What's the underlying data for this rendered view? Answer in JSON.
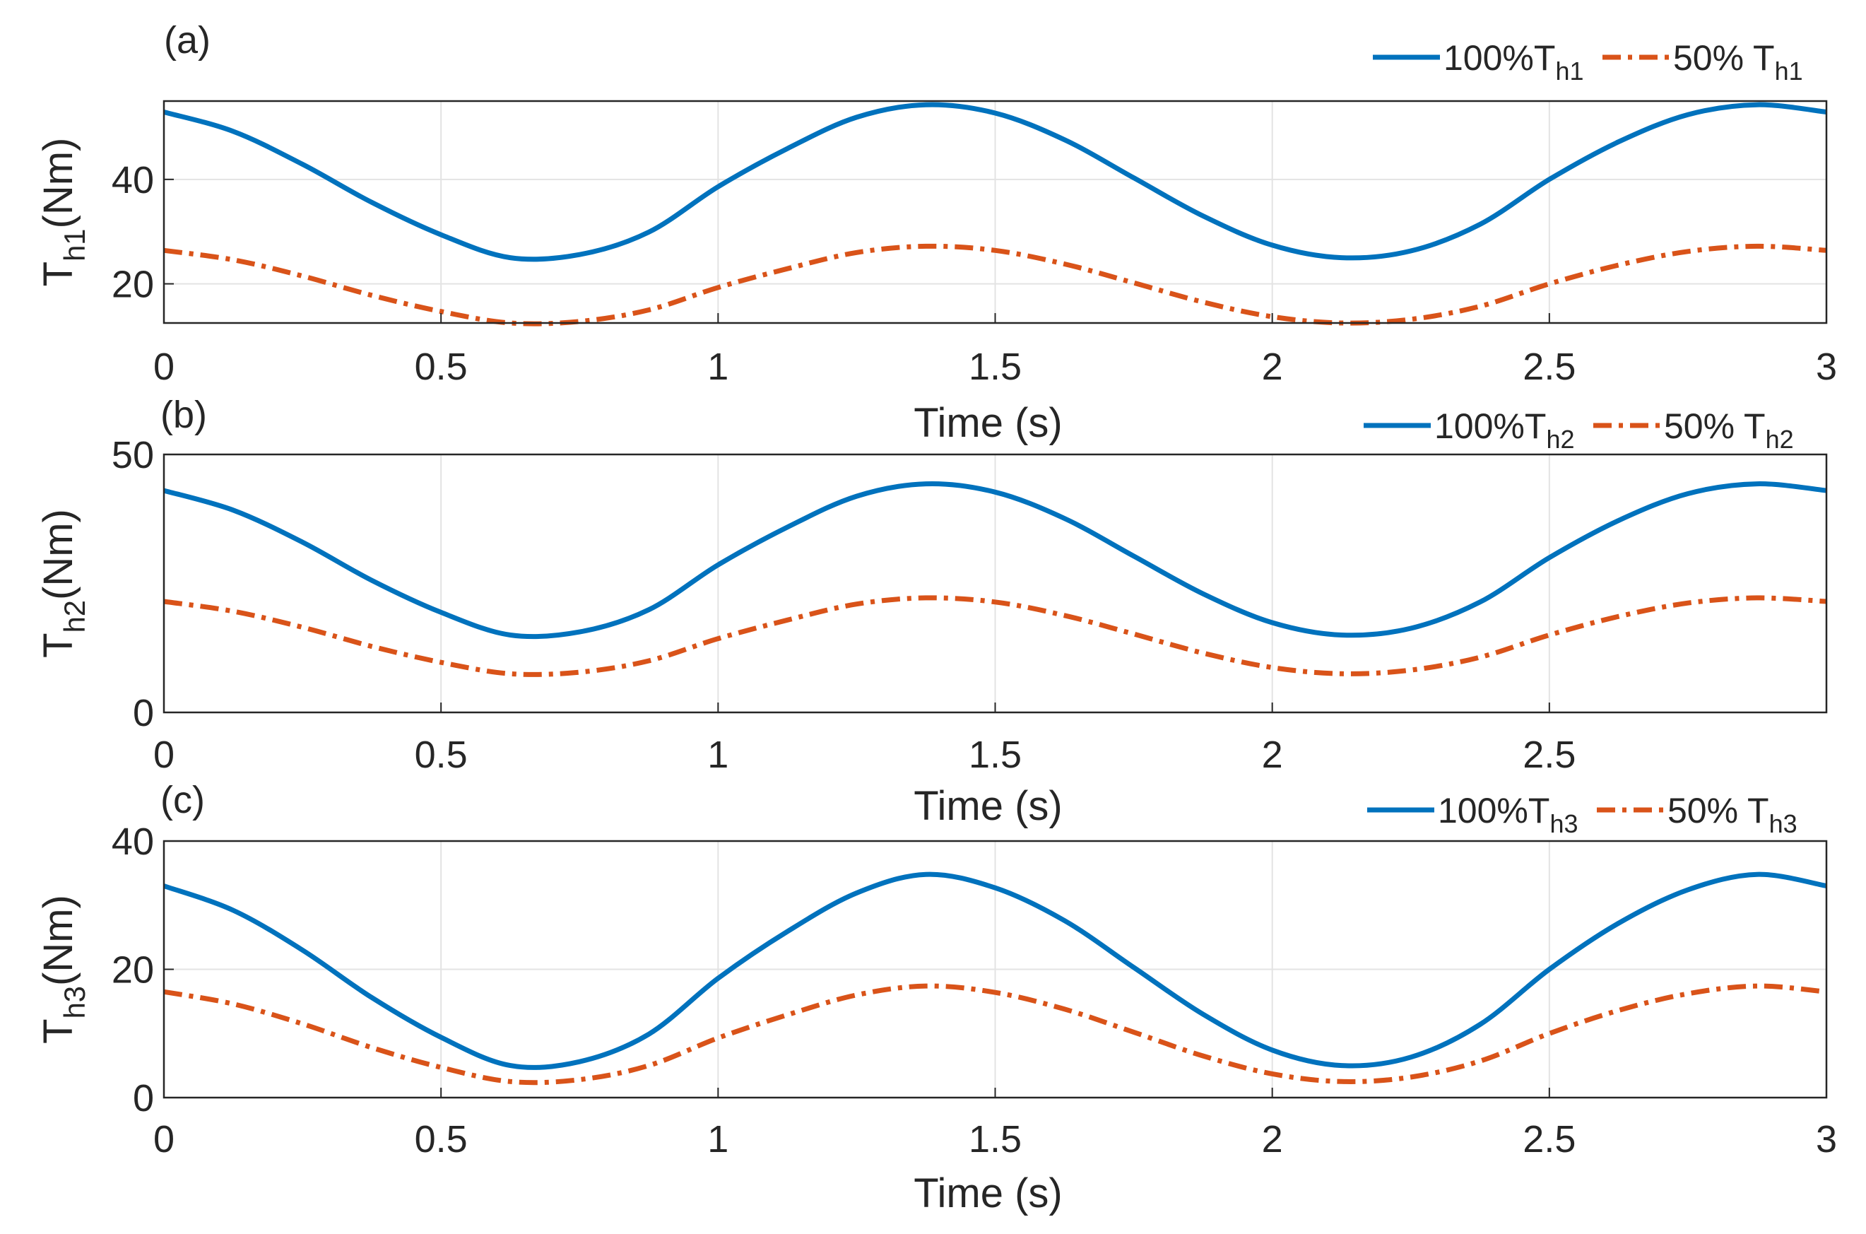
{
  "chart_data": [
    {
      "type": "line",
      "panel_label": "(a)",
      "xlabel": "Time (s)",
      "ylabel": {
        "main": "T",
        "sub": "h1",
        "unit": "(Nm)"
      },
      "xlim": [
        0,
        3
      ],
      "ylim": [
        12.5,
        55
      ],
      "xticks": [
        0,
        0.5,
        1,
        1.5,
        2,
        2.5,
        3
      ],
      "xtick_labels": [
        "0",
        "0.5",
        "1",
        "1.5",
        "2",
        "2.5",
        "3"
      ],
      "yticks": [
        20,
        40
      ],
      "ytick_labels": [
        "20",
        "40"
      ],
      "grid": true,
      "legend_position": "top-right",
      "x": [
        0,
        0.125,
        0.25,
        0.375,
        0.5,
        0.625,
        0.75,
        0.875,
        1,
        1.125,
        1.25,
        1.375,
        1.5,
        1.625,
        1.75,
        1.875,
        2,
        2.125,
        2.25,
        2.375,
        2.5,
        2.625,
        2.75,
        2.875,
        3
      ],
      "series": [
        {
          "name": "100%T",
          "name_sub": "h1",
          "color": "#0072BD",
          "dash": "solid",
          "values": [
            52.9,
            49.2,
            42.9,
            35.6,
            29.4,
            25.0,
            25.6,
            29.9,
            38.6,
            45.9,
            51.9,
            54.3,
            52.7,
            47.6,
            40.3,
            33.0,
            27.4,
            25.0,
            26.3,
            31.4,
            40.0,
            47.2,
            52.4,
            54.3,
            52.9
          ]
        },
        {
          "name": "50% T",
          "name_sub": "h1",
          "color": "#D95319",
          "dash": "dashdot",
          "values": [
            26.4,
            24.6,
            21.5,
            17.8,
            14.7,
            12.5,
            12.8,
            15.0,
            19.3,
            22.9,
            26.0,
            27.2,
            26.4,
            23.8,
            20.2,
            16.5,
            13.7,
            12.5,
            13.2,
            15.7,
            20.0,
            23.6,
            26.2,
            27.2,
            26.4
          ]
        }
      ]
    },
    {
      "type": "line",
      "panel_label": "(b)",
      "xlabel": "Time (s)",
      "ylabel": {
        "main": "T",
        "sub": "h2",
        "unit": "(Nm)"
      },
      "xlim": [
        0,
        3
      ],
      "ylim": [
        0,
        50
      ],
      "xticks": [
        0,
        0.5,
        1,
        1.5,
        2,
        2.5
      ],
      "xtick_labels": [
        "0",
        "0.5",
        "1",
        "1.5",
        "2",
        "2.5"
      ],
      "yticks": [
        0,
        50
      ],
      "ytick_labels": [
        "0",
        "50"
      ],
      "grid": true,
      "legend_position": "top-right",
      "x": [
        0,
        0.125,
        0.25,
        0.375,
        0.5,
        0.625,
        0.75,
        0.875,
        1,
        1.125,
        1.25,
        1.375,
        1.5,
        1.625,
        1.75,
        1.875,
        2,
        2.125,
        2.25,
        2.375,
        2.5,
        2.625,
        2.75,
        2.875,
        3
      ],
      "series": [
        {
          "name": "100%T",
          "name_sub": "h2",
          "color": "#0072BD",
          "dash": "solid",
          "values": [
            43.0,
            39.2,
            33.0,
            25.6,
            19.4,
            15.0,
            15.6,
            19.9,
            28.6,
            35.9,
            41.9,
            44.3,
            42.7,
            37.6,
            30.3,
            23.0,
            17.4,
            15.0,
            16.3,
            21.4,
            30.0,
            37.2,
            42.4,
            44.3,
            43.0
          ]
        },
        {
          "name": "50% T",
          "name_sub": "h2",
          "color": "#D95319",
          "dash": "dashdot",
          "values": [
            21.5,
            19.6,
            16.5,
            12.8,
            9.7,
            7.5,
            7.8,
            10.0,
            14.3,
            17.9,
            21.0,
            22.2,
            21.4,
            18.8,
            15.2,
            11.5,
            8.7,
            7.5,
            8.2,
            10.7,
            15.0,
            18.6,
            21.2,
            22.2,
            21.5
          ]
        }
      ]
    },
    {
      "type": "line",
      "panel_label": "(c)",
      "xlabel": "Time (s)",
      "ylabel": {
        "main": "T",
        "sub": "h3",
        "unit": "(Nm)"
      },
      "xlim": [
        0,
        3
      ],
      "ylim": [
        0,
        40
      ],
      "xticks": [
        0,
        0.5,
        1,
        1.5,
        2,
        2.5,
        3
      ],
      "xtick_labels": [
        "0",
        "0.5",
        "1",
        "1.5",
        "2",
        "2.5",
        "3"
      ],
      "yticks": [
        0,
        20,
        40
      ],
      "ytick_labels": [
        "0",
        "20",
        "40"
      ],
      "grid": true,
      "legend_position": "top-right",
      "x": [
        0,
        0.125,
        0.25,
        0.375,
        0.5,
        0.625,
        0.75,
        0.875,
        1,
        1.125,
        1.25,
        1.375,
        1.5,
        1.625,
        1.75,
        1.875,
        2,
        2.125,
        2.25,
        2.375,
        2.5,
        2.625,
        2.75,
        2.875,
        3
      ],
      "series": [
        {
          "name": "100%T",
          "name_sub": "h3",
          "color": "#0072BD",
          "dash": "solid",
          "values": [
            33.0,
            29.2,
            23.0,
            15.6,
            9.4,
            5.0,
            5.6,
            9.9,
            18.6,
            25.9,
            31.9,
            34.8,
            32.7,
            27.6,
            20.3,
            13.0,
            7.4,
            5.0,
            6.3,
            11.4,
            20.0,
            27.2,
            32.4,
            34.8,
            33.0
          ]
        },
        {
          "name": "50% T",
          "name_sub": "h3",
          "color": "#D95319",
          "dash": "dashdot",
          "values": [
            16.5,
            14.6,
            11.5,
            7.8,
            4.7,
            2.5,
            2.8,
            5.0,
            9.3,
            12.9,
            16.0,
            17.4,
            16.4,
            13.8,
            10.2,
            6.5,
            3.7,
            2.5,
            3.2,
            5.7,
            10.0,
            13.6,
            16.2,
            17.4,
            16.5
          ]
        }
      ]
    }
  ]
}
